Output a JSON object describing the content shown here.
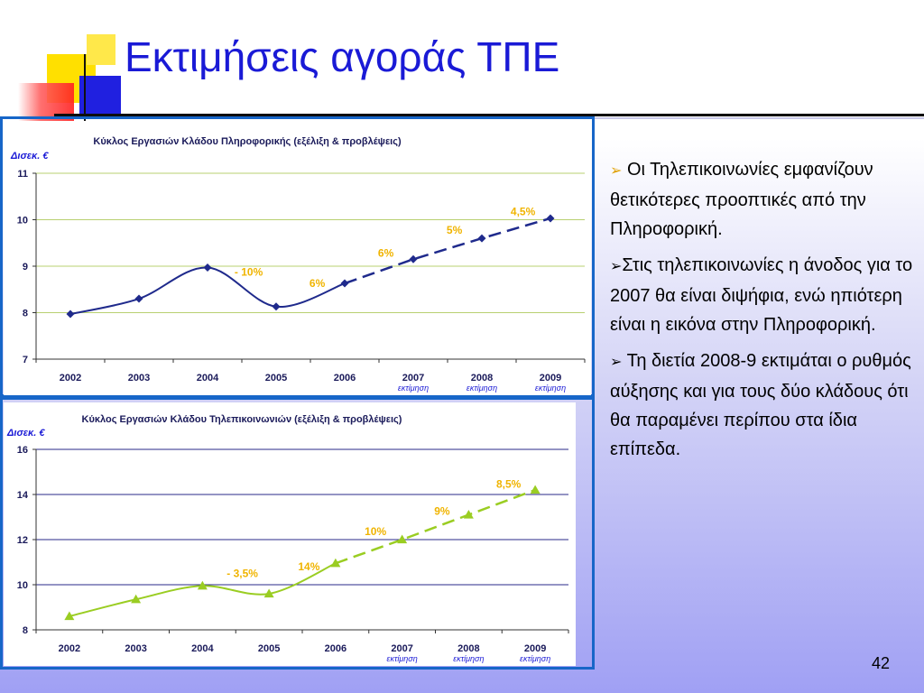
{
  "slide": {
    "title": "Εκτιμήσεις αγοράς ΤΠΕ",
    "page_number": "42",
    "bullets": [
      {
        "marker": "➢",
        "text": "Οι Τηλεπικοινωνίες εμφανίζουν θετικότερες προοπτικές από την Πληροφορική."
      },
      {
        "marker": "➢",
        "text": "Στις τηλεπικοινωνίες η άνοδος για το 2007 θα είναι διψήφια, ενώ ηπιότερη είναι η εικόνα στην Πληροφορική."
      },
      {
        "marker": "➢",
        "text": " Τη διετία 2008-9 εκτιμάται ο ρυθμός αύξησης και για τους δύο κλάδους ότι θα παραμένει περίπου στα ίδια επίπεδα."
      }
    ]
  },
  "colors": {
    "title": "#1a1ad6",
    "it_series": "#1f2a8c",
    "telecom_series": "#9acd22",
    "annotation": "#f0b400",
    "frame": "#1766c8"
  },
  "chart_data": [
    {
      "type": "line",
      "title": "Κύκλος Εργασιών Κλάδου Πληροφορικής (εξέλιξη & προβλέψεις)",
      "ylabel": "Δισεκ.  €",
      "categories": [
        "2002",
        "2003",
        "2004",
        "2005",
        "2006",
        "2007",
        "2008",
        "2009"
      ],
      "category_notes": [
        "",
        "",
        "",
        "",
        "",
        "εκτίμηση",
        "εκτίμηση",
        "εκτίμηση"
      ],
      "ylim": [
        7,
        11
      ],
      "yticks": [
        7,
        8,
        9,
        10,
        11
      ],
      "grid": true,
      "series": [
        {
          "values": [
            7.97,
            8.3,
            8.97,
            8.13,
            8.63,
            9.15,
            9.6,
            10.03
          ],
          "marker": "diamond",
          "forecast_from_index": 4
        }
      ],
      "annotations": [
        {
          "text": "- 10%",
          "x": "2004",
          "y": 8.8
        },
        {
          "text": "6%",
          "x": "2005",
          "y": 8.55
        },
        {
          "text": "6%",
          "x": "2006",
          "y": 9.2
        },
        {
          "text": "5%",
          "x": "2007",
          "y": 9.7
        },
        {
          "text": "4,5%",
          "x": "2008",
          "y": 10.1
        }
      ]
    },
    {
      "type": "line",
      "title": "Κύκλος Εργασιών Κλάδου Τηλεπικοινωνιών (εξέλιξη & προβλέψεις)",
      "ylabel": "Δισεκ.  €",
      "categories": [
        "2002",
        "2003",
        "2004",
        "2005",
        "2006",
        "2007",
        "2008",
        "2009"
      ],
      "category_notes": [
        "",
        "",
        "",
        "",
        "",
        "εκτίμηση",
        "εκτίμηση",
        "εκτίμηση"
      ],
      "ylim": [
        8,
        16
      ],
      "yticks": [
        8,
        10,
        12,
        14,
        16
      ],
      "grid": true,
      "series": [
        {
          "values": [
            8.6,
            9.35,
            9.95,
            9.6,
            10.95,
            12.0,
            13.1,
            14.2
          ],
          "marker": "triangle",
          "forecast_from_index": 4
        }
      ],
      "annotations": [
        {
          "text": "- 3,5%",
          "x": "2004",
          "y": 10.35
        },
        {
          "text": "14%",
          "x": "2005",
          "y": 10.65
        },
        {
          "text": "10%",
          "x": "2006",
          "y": 12.2
        },
        {
          "text": "9%",
          "x": "2007",
          "y": 13.1
        },
        {
          "text": "8,5%",
          "x": "2008",
          "y": 14.3
        }
      ]
    }
  ]
}
